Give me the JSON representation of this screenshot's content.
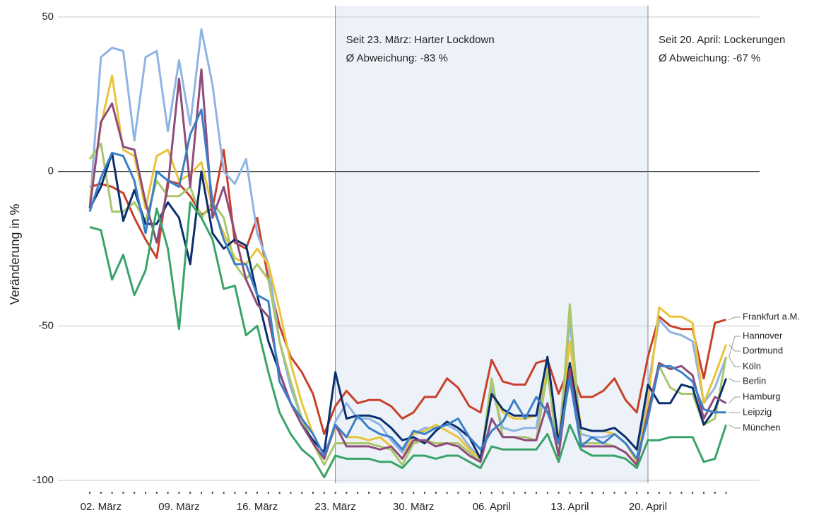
{
  "chart_data": {
    "type": "line",
    "y_label": "Veränderung in %",
    "categories": [
      null,
      "02. März",
      null,
      null,
      null,
      null,
      null,
      null,
      "09. März",
      null,
      null,
      null,
      null,
      null,
      null,
      "16. März",
      null,
      null,
      null,
      null,
      null,
      null,
      "23. März",
      null,
      null,
      null,
      null,
      null,
      null,
      "30. März",
      null,
      null,
      null,
      null,
      null,
      null,
      "06. April",
      null,
      null,
      null,
      null,
      null,
      null,
      "13. April",
      null,
      null,
      null,
      null,
      null,
      null,
      "20. April",
      null,
      null,
      null,
      null,
      null,
      null,
      null
    ],
    "ylim": [
      -103,
      52
    ],
    "yticks": [
      -100,
      -50,
      0,
      50
    ],
    "grid": true,
    "shaded": [
      "23. März",
      "20. April"
    ],
    "annotations": [
      {
        "at": "23. März",
        "lines": [
          "Seit 23. März: Harter Lockdown",
          "Ø Abweichung: -83 %"
        ]
      },
      {
        "at": "20. April",
        "lines": [
          "Seit 20. April: Lockerungen",
          "Ø Abweichung: -67 %"
        ]
      }
    ],
    "series": [
      {
        "name": "Frankfurt a.M.",
        "color": "#c8412a",
        "values": [
          -5,
          -4,
          -5,
          -7,
          -15,
          -22,
          -28,
          -3,
          -4,
          -8,
          -14,
          -12,
          7,
          -23,
          -25,
          -15,
          -35,
          -50,
          -60,
          -65,
          -72,
          -85,
          -76,
          -71,
          -75,
          -74,
          -74,
          -76,
          -80,
          -78,
          -73,
          -73,
          -67,
          -70,
          -76,
          -78,
          -61,
          -68,
          -69,
          -69,
          -62,
          -61,
          -72,
          -63,
          -73,
          -73,
          -71,
          -67,
          -74,
          -78,
          -60,
          -47,
          -50,
          -51,
          -51,
          -67,
          -49,
          -48
        ]
      },
      {
        "name": "Hannover",
        "color": "#8fb4e3",
        "values": [
          -12,
          37,
          40,
          39,
          10,
          37,
          39,
          13,
          36,
          15,
          46,
          28,
          0,
          -4,
          4,
          -20,
          -30,
          -55,
          -70,
          -80,
          -88,
          -93,
          -81,
          -75,
          -80,
          -80,
          -82,
          -87,
          -91,
          -85,
          -83,
          -83,
          -82,
          -84,
          -89,
          -93,
          -70,
          -83,
          -84,
          -83,
          -83,
          -62,
          -88,
          -48,
          -85,
          -86,
          -86,
          -85,
          -88,
          -93,
          -70,
          -48,
          -52,
          -53,
          -55,
          -75,
          -70,
          -60
        ]
      },
      {
        "name": "Dortmund",
        "color": "#e8c43a",
        "values": [
          -10,
          15,
          31,
          7,
          5,
          -12,
          5,
          7,
          -3,
          -1,
          3,
          -12,
          -20,
          -28,
          -30,
          -25,
          -30,
          -45,
          -62,
          -75,
          -85,
          -92,
          -83,
          -86,
          -86,
          -87,
          -86,
          -89,
          -93,
          -85,
          -84,
          -82,
          -84,
          -86,
          -90,
          -93,
          -72,
          -78,
          -80,
          -80,
          -79,
          -64,
          -87,
          -55,
          -83,
          -84,
          -84,
          -85,
          -88,
          -94,
          -75,
          -44,
          -47,
          -47,
          -49,
          -75,
          -66,
          -56
        ]
      },
      {
        "name": "Köln",
        "color": "#a9c76a",
        "values": [
          4,
          9,
          -13,
          -13,
          -10,
          -16,
          -3,
          -8,
          -8,
          -5,
          -15,
          -10,
          -15,
          -30,
          -35,
          -30,
          -35,
          -55,
          -68,
          -80,
          -88,
          -95,
          -88,
          -88,
          -88,
          -88,
          -89,
          -90,
          -95,
          -88,
          -87,
          -88,
          -88,
          -88,
          -91,
          -94,
          -67,
          -86,
          -86,
          -86,
          -87,
          -65,
          -93,
          -43,
          -88,
          -88,
          -88,
          -89,
          -91,
          -95,
          -78,
          -63,
          -70,
          -72,
          -72,
          -82,
          -80,
          -60
        ]
      },
      {
        "name": "Berlin",
        "color": "#0b2e6e",
        "values": [
          -12,
          -5,
          6,
          -16,
          -6,
          -17,
          -17,
          -10,
          -15,
          -30,
          0,
          -20,
          -25,
          -22,
          -24,
          -40,
          -55,
          -65,
          -75,
          -82,
          -87,
          -91,
          -65,
          -80,
          -79,
          -79,
          -80,
          -83,
          -87,
          -86,
          -88,
          -84,
          -81,
          -83,
          -86,
          -93,
          -72,
          -77,
          -79,
          -79,
          -79,
          -60,
          -88,
          -62,
          -83,
          -84,
          -84,
          -83,
          -86,
          -90,
          -69,
          -75,
          -75,
          -69,
          -70,
          -82,
          -77,
          -67
        ]
      },
      {
        "name": "Hamburg",
        "color": "#8e4b7c",
        "values": [
          -12,
          16,
          22,
          8,
          7,
          -10,
          -23,
          -5,
          30,
          -5,
          33,
          -15,
          -5,
          -20,
          -35,
          -43,
          -47,
          -65,
          -75,
          -82,
          -88,
          -93,
          -82,
          -89,
          -89,
          -89,
          -90,
          -89,
          -93,
          -87,
          -87,
          -89,
          -88,
          -89,
          -92,
          -94,
          -80,
          -86,
          -86,
          -87,
          -87,
          -75,
          -92,
          -64,
          -89,
          -89,
          -89,
          -89,
          -91,
          -95,
          -78,
          -62,
          -64,
          -63,
          -66,
          -80,
          -73,
          -75
        ]
      },
      {
        "name": "Leipzig",
        "color": "#3a7fc8",
        "values": [
          -13,
          -2,
          6,
          5,
          -3,
          -20,
          0,
          -3,
          -5,
          12,
          20,
          -10,
          -22,
          -30,
          -30,
          -40,
          -42,
          -68,
          -75,
          -80,
          -85,
          -92,
          -82,
          -86,
          -79,
          -83,
          -85,
          -86,
          -90,
          -84,
          -85,
          -83,
          -82,
          -80,
          -86,
          -90,
          -84,
          -81,
          -74,
          -80,
          -73,
          -78,
          -88,
          -67,
          -89,
          -86,
          -88,
          -85,
          -88,
          -93,
          -80,
          -63,
          -63,
          -65,
          -68,
          -77,
          -78,
          -78
        ]
      },
      {
        "name": "München",
        "color": "#3aa36a",
        "values": [
          -18,
          -19,
          -35,
          -27,
          -40,
          -32,
          -12,
          -25,
          -51,
          -10,
          -15,
          -22,
          -38,
          -37,
          -53,
          -50,
          -65,
          -78,
          -85,
          -90,
          -93,
          -99,
          -92,
          -93,
          -93,
          -93,
          -94,
          -94,
          -96,
          -92,
          -92,
          -93,
          -92,
          -92,
          -94,
          -96,
          -89,
          -90,
          -90,
          -90,
          -90,
          -85,
          -94,
          -82,
          -90,
          -92,
          -92,
          -92,
          -93,
          -96,
          -87,
          -87,
          -86,
          -86,
          -86,
          -94,
          -93,
          -82
        ]
      }
    ]
  }
}
